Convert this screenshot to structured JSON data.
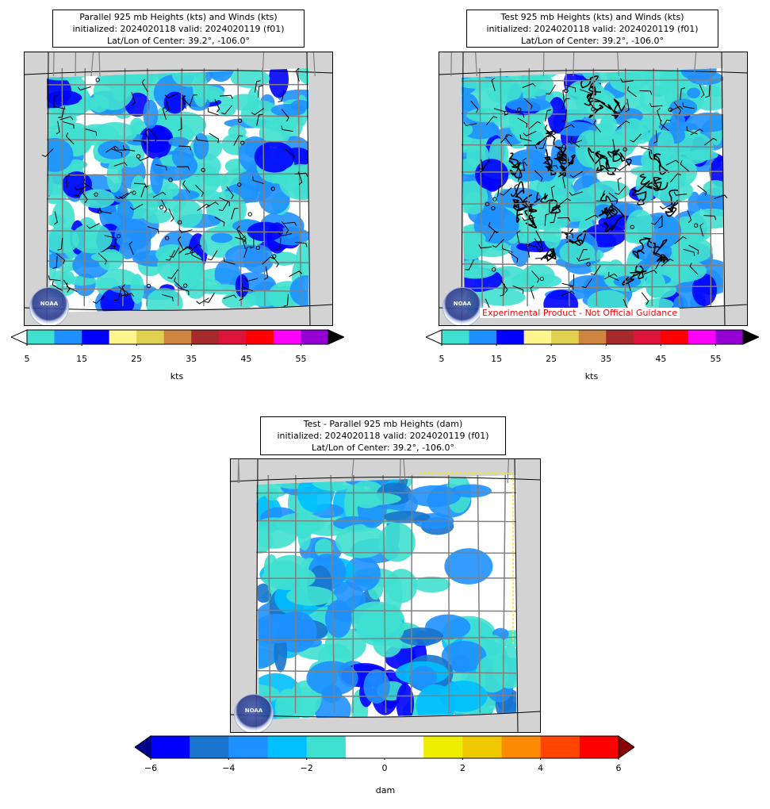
{
  "panels": [
    {
      "id": "parallel",
      "title_line1": "Parallel 925 mb Heights (kts) and Winds (kts)",
      "title_line2": "initialized: 2024020118 valid: 2024020119 (f01)",
      "title_line3": "Lat/Lon of Center: 39.2°, -106.0°",
      "colorbar_label": "kts",
      "ticks": [
        "5",
        "15",
        "25",
        "35",
        "45",
        "55"
      ]
    },
    {
      "id": "test",
      "title_line1": "Test 925 mb Heights (kts) and Winds (kts)",
      "title_line2": "initialized: 2024020118 valid: 2024020119 (f01)",
      "title_line3": "Lat/Lon of Center: 39.2°, -106.0°",
      "colorbar_label": "kts",
      "ticks": [
        "5",
        "15",
        "25",
        "35",
        "45",
        "55"
      ],
      "watermark": "Experimental Product - Not Official Guidance"
    },
    {
      "id": "difference",
      "title_line1": "Test - Parallel 925 mb Heights (dam)",
      "title_line2": "initialized: 2024020118 valid: 2024020119 (f01)",
      "title_line3": "Lat/Lon of Center: 39.2°, -106.0°",
      "colorbar_label": "dam",
      "ticks": [
        "−6",
        "−4",
        "−2",
        "0",
        "2",
        "4",
        "6"
      ]
    }
  ],
  "wind_colors": [
    "#40e0d0",
    "#1e90ff",
    "#0000ff",
    "#fff68f",
    "#e0d050",
    "#cd853f",
    "#a52a2a",
    "#dc143c",
    "#ff0000",
    "#ff00ff",
    "#9400d3"
  ],
  "wind_extend_over": "#000000",
  "wind_extend_under": "#ffffff",
  "diff_colors": [
    "#0000ff",
    "#1874cd",
    "#1e90ff",
    "#00bfff",
    "#40e0d0",
    "#ffffff",
    "#ffffff",
    "#eeee00",
    "#eec900",
    "#ff8c00",
    "#ff4500",
    "#ff0000"
  ],
  "diff_extend_under": "#00008b",
  "diff_extend_over": "#8b0000",
  "logo_text": "NOAA"
}
